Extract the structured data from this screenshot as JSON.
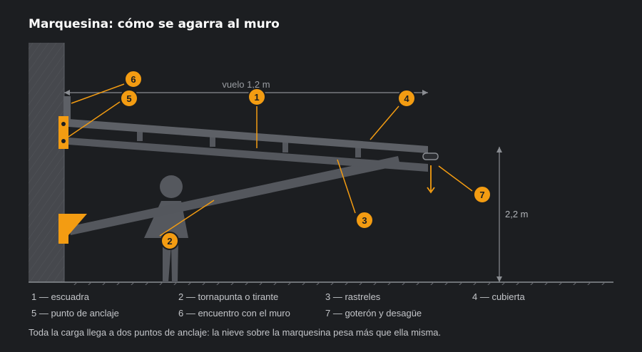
{
  "title": "Marquesina: cómo se agarra al muro",
  "dimensions": {
    "span_label": "vuelo 1,2 m",
    "height_label": "2,2 m"
  },
  "callouts": [
    {
      "num": "1",
      "label": "escuadra"
    },
    {
      "num": "2",
      "label": "tornapunta o tirante"
    },
    {
      "num": "3",
      "label": "rastreles"
    },
    {
      "num": "4",
      "label": "cubierta"
    },
    {
      "num": "5",
      "label": "punto de anclaje"
    },
    {
      "num": "6",
      "label": "encuentro con el muro"
    },
    {
      "num": "7",
      "label": "goterón y desagüe"
    }
  ],
  "legend": [
    "1 — escuadra",
    "2 — tornapunta o tirante",
    "3 — rastreles",
    "4 — cubierta",
    "5 — punto de anclaje",
    "6 — encuentro con el muro",
    "7 — goterón y desagüe"
  ],
  "note": "Toda la carga llega a dos puntos de anclaje: la nieve sobre la marquesina pesa más que ella misma.",
  "colors": {
    "background": "#1c1e21",
    "accent": "#f39c12",
    "structure": "#54575d",
    "wall": "#4a4c51",
    "text": "#c3c5c9"
  }
}
